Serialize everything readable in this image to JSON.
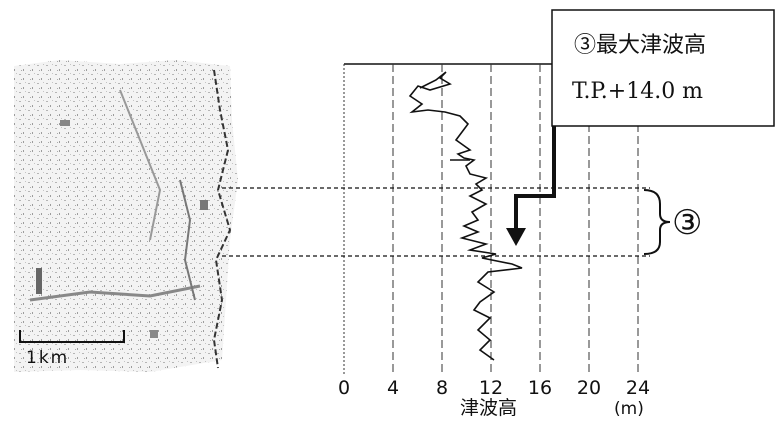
{
  "chart_data": {
    "type": "line",
    "xlabel": "津波高",
    "xunit": "(m)",
    "x_ticks": [
      0,
      4,
      8,
      12,
      16,
      20,
      24
    ],
    "xlim": [
      0,
      24
    ],
    "grid": true
  },
  "callout": {
    "title": "③最大津波高",
    "value": "T.P.+14.0 m"
  },
  "zone_marker": "③",
  "map": {
    "scale_label": "1km"
  },
  "colors": {
    "ink": "#111111",
    "map_gray": "#9a9a9a"
  }
}
